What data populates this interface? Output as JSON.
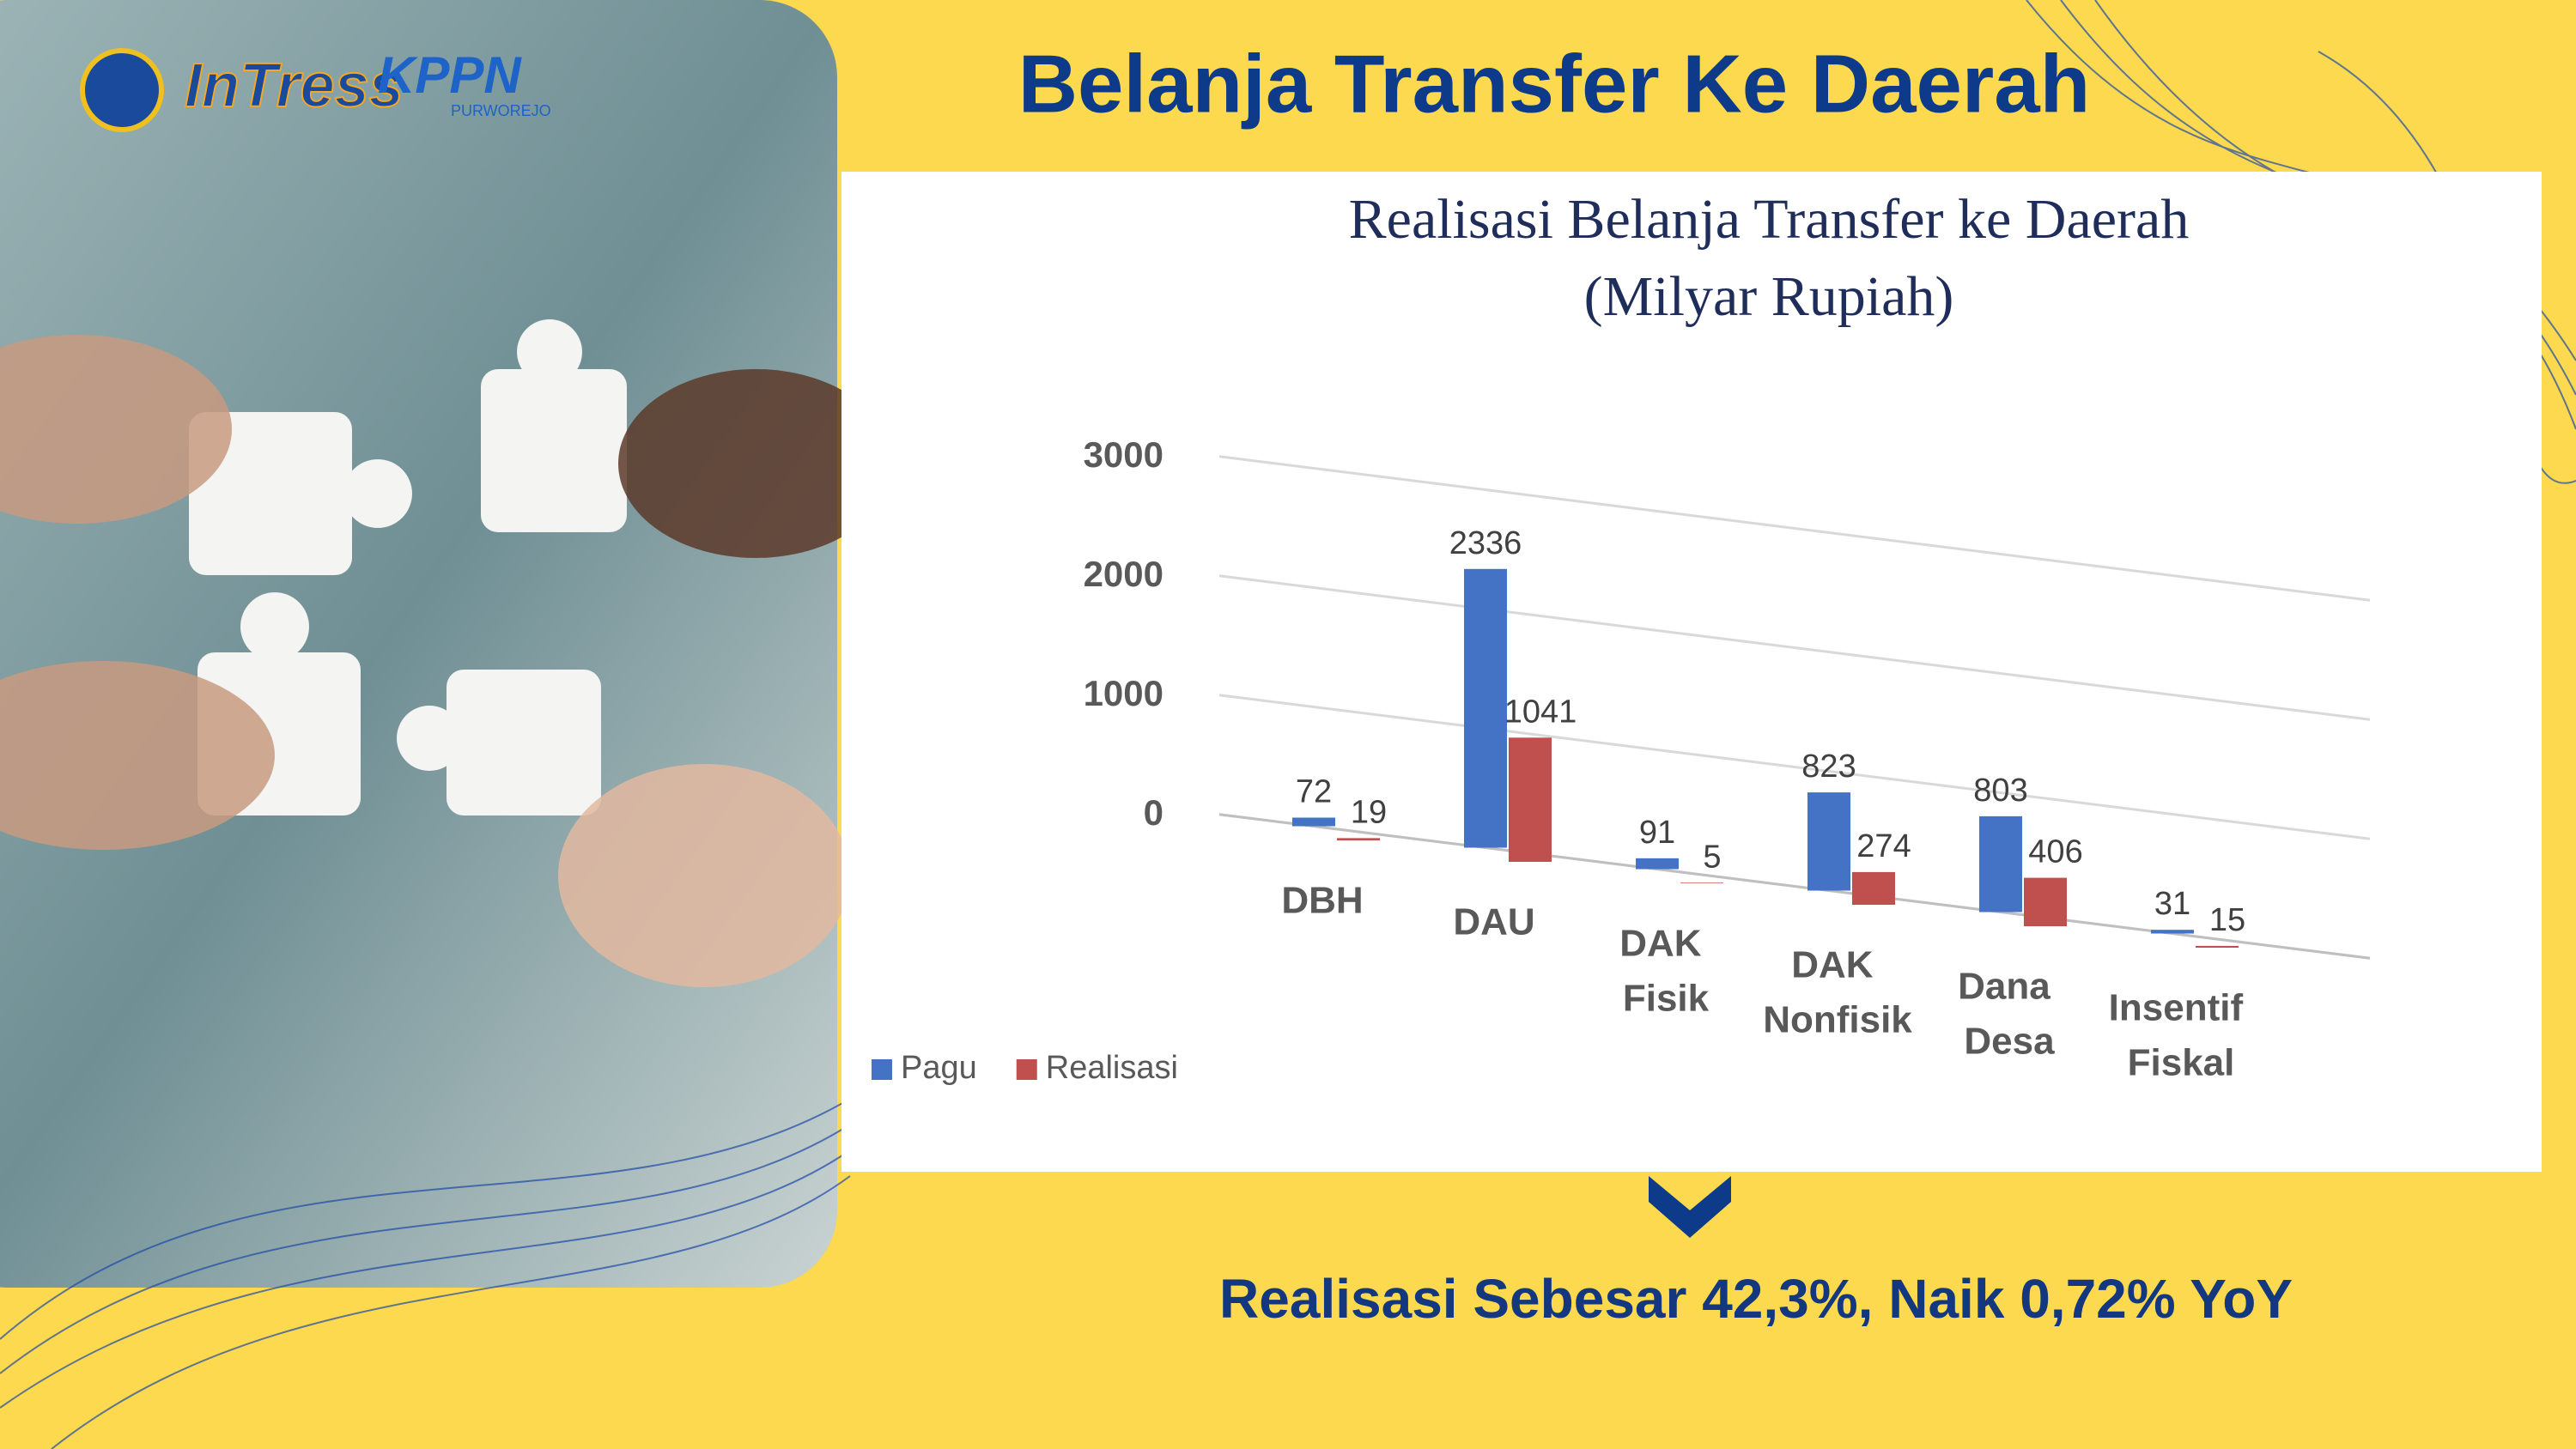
{
  "header": {
    "title": "Belanja Transfer Ke Daerah",
    "logos": [
      "InTress",
      "KPPN",
      "PURWOREJO"
    ]
  },
  "chart_data": {
    "type": "bar",
    "title": "Realisasi Belanja Transfer ke Daerah",
    "subtitle": "(Milyar Rupiah)",
    "categories": [
      "DBH",
      "DAU",
      "DAK Fisik",
      "DAK Nonfisik",
      "Dana Desa",
      "Insentif Fiskal"
    ],
    "series": [
      {
        "name": "Pagu",
        "color": "#4472c4",
        "values": [
          72,
          2336,
          91,
          823,
          803,
          31
        ]
      },
      {
        "name": "Realisasi",
        "color": "#c0504d",
        "values": [
          19,
          1041,
          5,
          274,
          406,
          15
        ]
      }
    ],
    "ylim": [
      0,
      3000
    ],
    "yticks": [
      0,
      1000,
      2000,
      3000
    ],
    "grid": true,
    "legend": "bottom-left"
  },
  "footer": {
    "text": "Realisasi Sebesar 42,3%, Naik 0,72% YoY"
  }
}
